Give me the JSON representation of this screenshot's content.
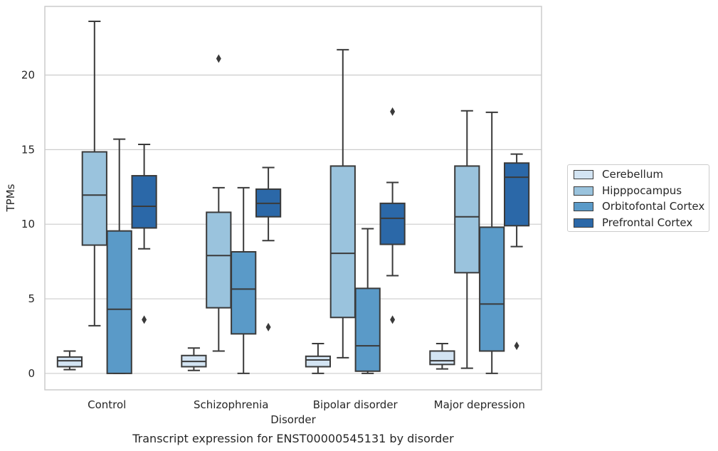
{
  "chart_data": {
    "type": "box",
    "title": "",
    "caption": "Transcript expression for ENST00000545131 by disorder",
    "xlabel": "Disorder",
    "ylabel": "TPMs",
    "ylim": [
      -1.1,
      24.6
    ],
    "yticks": [
      0,
      5,
      10,
      15,
      20
    ],
    "grid": "horizontal",
    "legend_position": "right",
    "categories": [
      "Control",
      "Schizophrenia",
      "Bipolar disorder",
      "Major depression"
    ],
    "series": [
      {
        "name": "Cerebellum",
        "color": "#d3e4f3",
        "boxes": [
          {
            "whisker_low": 0.25,
            "q1": 0.45,
            "median": 0.85,
            "q3": 1.1,
            "whisker_high": 1.5,
            "outliers": []
          },
          {
            "whisker_low": 0.2,
            "q1": 0.45,
            "median": 0.8,
            "q3": 1.2,
            "whisker_high": 1.7,
            "outliers": []
          },
          {
            "whisker_low": 0.0,
            "q1": 0.45,
            "median": 0.9,
            "q3": 1.15,
            "whisker_high": 2.0,
            "outliers": []
          },
          {
            "whisker_low": 0.3,
            "q1": 0.6,
            "median": 0.85,
            "q3": 1.5,
            "whisker_high": 2.0,
            "outliers": []
          }
        ]
      },
      {
        "name": "Hipppocampus",
        "color": "#9ac3dd",
        "boxes": [
          {
            "whisker_low": 3.2,
            "q1": 8.6,
            "median": 11.95,
            "q3": 14.85,
            "whisker_high": 23.6,
            "outliers": []
          },
          {
            "whisker_low": 1.5,
            "q1": 4.4,
            "median": 7.9,
            "q3": 10.8,
            "whisker_high": 12.45,
            "outliers": [
              21.1
            ]
          },
          {
            "whisker_low": 1.05,
            "q1": 3.75,
            "median": 8.05,
            "q3": 13.9,
            "whisker_high": 21.7,
            "outliers": []
          },
          {
            "whisker_low": 0.35,
            "q1": 6.75,
            "median": 10.5,
            "q3": 13.9,
            "whisker_high": 17.6,
            "outliers": []
          }
        ]
      },
      {
        "name": "Orbitofontal Cortex",
        "color": "#5a9ac8",
        "boxes": [
          {
            "whisker_low": 0.0,
            "q1": 0.0,
            "median": 4.3,
            "q3": 9.55,
            "whisker_high": 15.7,
            "outliers": []
          },
          {
            "whisker_low": 0.0,
            "q1": 2.65,
            "median": 5.65,
            "q3": 8.15,
            "whisker_high": 12.45,
            "outliers": []
          },
          {
            "whisker_low": 0.0,
            "q1": 0.15,
            "median": 1.85,
            "q3": 5.7,
            "whisker_high": 9.7,
            "outliers": []
          },
          {
            "whisker_low": 0.0,
            "q1": 1.5,
            "median": 4.65,
            "q3": 9.8,
            "whisker_high": 17.5,
            "outliers": []
          }
        ]
      },
      {
        "name": "Prefrontal Cortex",
        "color": "#2b68a8",
        "boxes": [
          {
            "whisker_low": 8.35,
            "q1": 9.75,
            "median": 11.2,
            "q3": 13.25,
            "whisker_high": 15.35,
            "outliers": [
              3.6
            ]
          },
          {
            "whisker_low": 8.9,
            "q1": 10.5,
            "median": 11.4,
            "q3": 12.35,
            "whisker_high": 13.8,
            "outliers": [
              3.1
            ]
          },
          {
            "whisker_low": 6.55,
            "q1": 8.65,
            "median": 10.4,
            "q3": 11.4,
            "whisker_high": 12.8,
            "outliers": [
              3.6,
              17.55
            ]
          },
          {
            "whisker_low": 8.5,
            "q1": 9.9,
            "median": 13.15,
            "q3": 14.1,
            "whisker_high": 14.7,
            "outliers": [
              1.85
            ]
          }
        ]
      }
    ]
  }
}
